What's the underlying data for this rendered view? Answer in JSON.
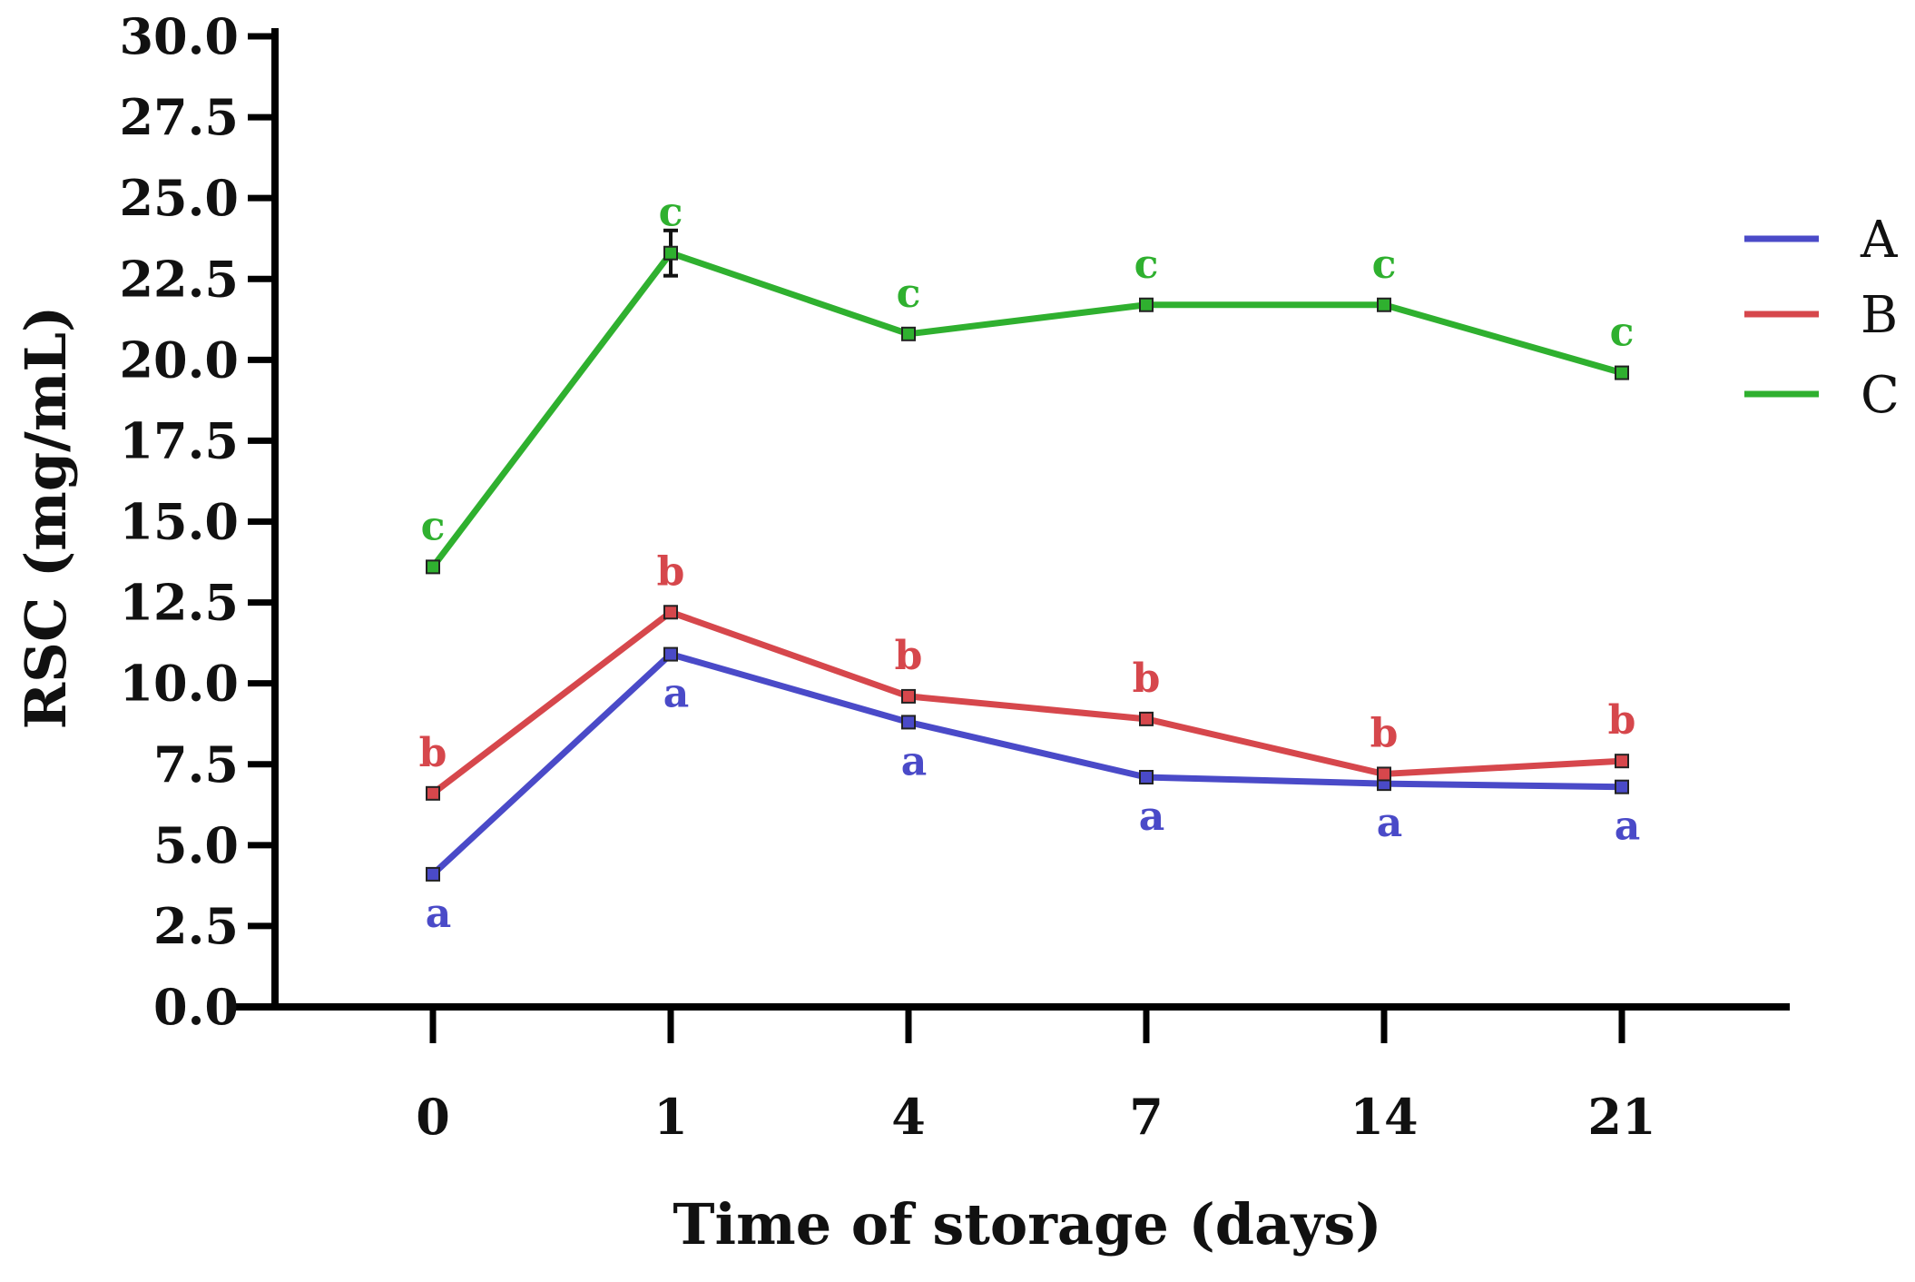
{
  "chart_data": {
    "type": "line",
    "title": "",
    "xlabel": "Time of storage (days)",
    "ylabel": "RSC (mg/mL)",
    "categories": [
      "0",
      "1",
      "4",
      "7",
      "14",
      "21"
    ],
    "ylim": [
      0,
      30
    ],
    "yticks": [
      "0.0",
      "2.5",
      "5.0",
      "7.5",
      "10.0",
      "12.5",
      "15.0",
      "17.5",
      "20.0",
      "22.5",
      "25.0",
      "27.5",
      "30.0"
    ],
    "grid": false,
    "legend_position": "right",
    "series": [
      {
        "name": "A",
        "color": "#4a4ac8",
        "values": [
          4.1,
          10.9,
          8.8,
          7.1,
          6.9,
          6.8
        ],
        "errors": [
          0.05,
          0.1,
          0.1,
          0.1,
          0.1,
          0.1
        ],
        "labels": [
          "a",
          "a",
          "a",
          "a",
          "a",
          "a"
        ],
        "label_side": "below"
      },
      {
        "name": "B",
        "color": "#d6474c",
        "values": [
          6.6,
          12.2,
          9.6,
          8.9,
          7.2,
          7.6
        ],
        "errors": [
          0.1,
          0.15,
          0.1,
          0.1,
          0.15,
          0.1
        ],
        "labels": [
          "b",
          "b",
          "b",
          "b",
          "b",
          "b"
        ],
        "label_side": "above"
      },
      {
        "name": "C",
        "color": "#2fb02f",
        "values": [
          13.6,
          23.3,
          20.8,
          21.7,
          21.7,
          19.6
        ],
        "errors": [
          0.15,
          0.7,
          0.15,
          0.15,
          0.15,
          0.1
        ],
        "labels": [
          "c",
          "c",
          "c",
          "c",
          "c",
          "c"
        ],
        "label_side": "above"
      }
    ]
  }
}
